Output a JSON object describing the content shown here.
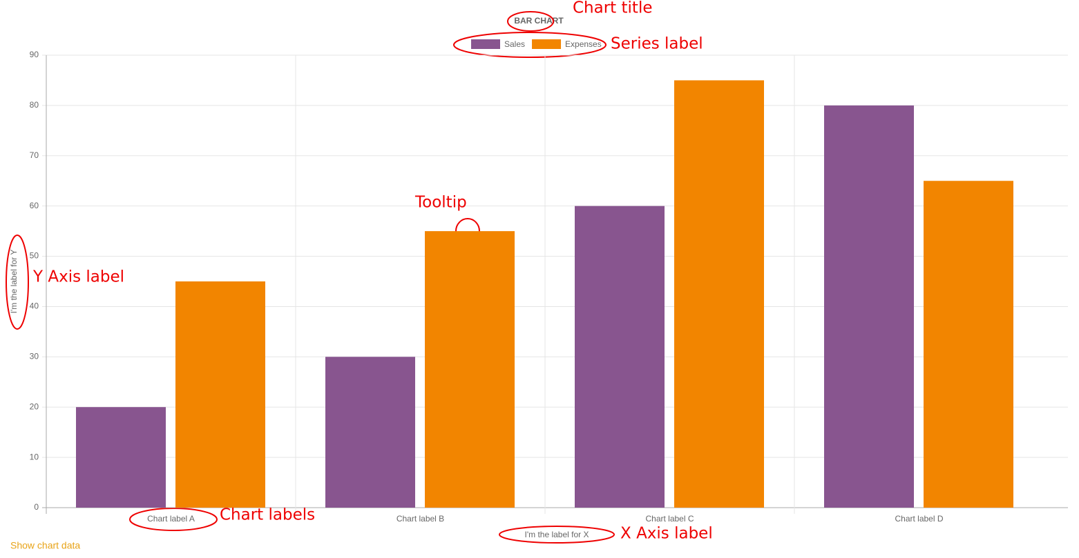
{
  "chart_data": {
    "type": "bar",
    "title": "BAR CHART",
    "categories": [
      "Chart label A",
      "Chart label B",
      "Chart label C",
      "Chart label D"
    ],
    "series": [
      {
        "name": "Sales",
        "color": "#88558f",
        "values": [
          20,
          30,
          60,
          80
        ]
      },
      {
        "name": "Expenses",
        "color": "#f28500",
        "values": [
          45,
          55,
          85,
          65
        ]
      }
    ],
    "x_label": "I'm the label for X",
    "y_label": "I'm the label for Y",
    "ylim": [
      0,
      90
    ],
    "yticks": [
      0,
      10,
      20,
      30,
      40,
      50,
      60,
      70,
      80,
      90
    ],
    "grid": true,
    "legend": "top",
    "annotations": [
      "Chart title",
      "Series label",
      "Tooltip",
      "Y Axis label",
      "Chart labels",
      "X Axis label"
    ]
  },
  "link": "Show chart data"
}
